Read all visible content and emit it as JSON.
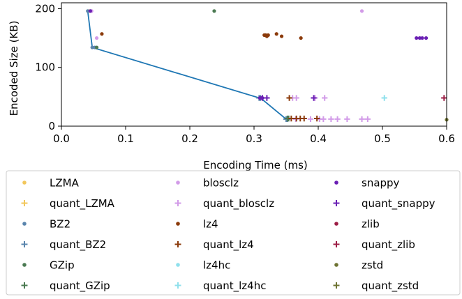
{
  "chart_data": {
    "type": "scatter",
    "title": "",
    "xlabel": "Encoding Time (ms)",
    "ylabel": "Encoded Size (KB)",
    "xlim": [
      0.0,
      0.6
    ],
    "ylim": [
      0,
      210
    ],
    "xticks": [
      0.0,
      0.1,
      0.2,
      0.3,
      0.4,
      0.5,
      0.6
    ],
    "xtick_labels": [
      "0.0",
      "0.1",
      "0.2",
      "0.3",
      "0.4",
      "0.5",
      "0.6"
    ],
    "yticks": [
      0,
      100,
      200
    ],
    "ytick_labels": [
      "0",
      "100",
      "200"
    ],
    "grid": false,
    "legend_position": "below",
    "series": [
      {
        "name": "LZMA",
        "marker": "dot",
        "color": "#f2c75c",
        "points": [
          [
            0.043,
            196
          ]
        ]
      },
      {
        "name": "quant_LZMA",
        "marker": "plus",
        "color": "#f2c75c",
        "points": []
      },
      {
        "name": "BZ2",
        "marker": "dot",
        "color": "#5a85ad",
        "points": [
          [
            0.041,
            196
          ],
          [
            0.048,
            134
          ],
          [
            0.052,
            134
          ]
        ]
      },
      {
        "name": "quant_BZ2",
        "marker": "plus",
        "color": "#5a85ad",
        "points": [
          [
            0.308,
            48
          ],
          [
            0.31,
            48
          ],
          [
            0.35,
            12
          ],
          [
            0.352,
            12
          ]
        ]
      },
      {
        "name": "GZip",
        "marker": "dot",
        "color": "#4b7a52",
        "points": [
          [
            0.046,
            196
          ],
          [
            0.055,
            134
          ],
          [
            0.238,
            196
          ]
        ]
      },
      {
        "name": "quant_GZip",
        "marker": "plus",
        "color": "#4b7a52",
        "points": [
          [
            0.352,
            13
          ],
          [
            0.354,
            13
          ]
        ]
      },
      {
        "name": "blosclz",
        "marker": "dot",
        "color": "#d29be8",
        "points": [
          [
            0.047,
            196
          ],
          [
            0.055,
            150
          ],
          [
            0.468,
            196
          ]
        ]
      },
      {
        "name": "quant_blosclz",
        "marker": "plus",
        "color": "#d29be8",
        "points": [
          [
            0.36,
            48
          ],
          [
            0.366,
            48
          ],
          [
            0.395,
            48
          ],
          [
            0.41,
            48
          ],
          [
            0.365,
            12
          ],
          [
            0.388,
            12
          ],
          [
            0.402,
            12
          ],
          [
            0.408,
            12
          ],
          [
            0.42,
            12
          ],
          [
            0.43,
            12
          ],
          [
            0.445,
            12
          ],
          [
            0.468,
            12
          ],
          [
            0.477,
            12
          ]
        ]
      },
      {
        "name": "lz4",
        "marker": "dot",
        "color": "#8b3a0a",
        "points": [
          [
            0.063,
            157
          ],
          [
            0.316,
            155
          ],
          [
            0.318,
            155
          ],
          [
            0.32,
            153
          ],
          [
            0.322,
            155
          ],
          [
            0.335,
            157
          ],
          [
            0.343,
            153
          ],
          [
            0.373,
            150
          ]
        ]
      },
      {
        "name": "quant_lz4",
        "marker": "plus",
        "color": "#8b3a0a",
        "points": [
          [
            0.355,
            48
          ],
          [
            0.358,
            13
          ],
          [
            0.366,
            13
          ],
          [
            0.372,
            13
          ],
          [
            0.378,
            13
          ],
          [
            0.398,
            13
          ]
        ]
      },
      {
        "name": "lz4hc",
        "marker": "dot",
        "color": "#8fe0ec",
        "points": []
      },
      {
        "name": "quant_lz4hc",
        "marker": "plus",
        "color": "#8fe0ec",
        "points": [
          [
            0.503,
            48
          ]
        ]
      },
      {
        "name": "snappy",
        "marker": "dot",
        "color": "#6a1fb4",
        "points": [
          [
            0.045,
            196
          ],
          [
            0.309,
            48
          ],
          [
            0.311,
            48
          ],
          [
            0.313,
            48
          ],
          [
            0.553,
            150
          ],
          [
            0.558,
            150
          ],
          [
            0.562,
            150
          ],
          [
            0.568,
            150
          ]
        ]
      },
      {
        "name": "quant_snappy",
        "marker": "plus",
        "color": "#6a1fb4",
        "points": [
          [
            0.313,
            48
          ],
          [
            0.32,
            48
          ],
          [
            0.393,
            48
          ]
        ]
      },
      {
        "name": "zlib",
        "marker": "dot",
        "color": "#9c1d45",
        "points": []
      },
      {
        "name": "quant_zlib",
        "marker": "plus",
        "color": "#9c1d45",
        "points": [
          [
            0.596,
            48
          ]
        ]
      },
      {
        "name": "zstd",
        "marker": "dot",
        "color": "#6e7332",
        "points": [
          [
            0.6,
            11
          ]
        ]
      },
      {
        "name": "quant_zstd",
        "marker": "plus",
        "color": "#6e7332",
        "points": []
      }
    ],
    "pareto_line": {
      "color": "#1f77b4",
      "points": [
        [
          0.041,
          196
        ],
        [
          0.048,
          134
        ],
        [
          0.308,
          48
        ],
        [
          0.31,
          48
        ],
        [
          0.35,
          12
        ]
      ]
    }
  }
}
